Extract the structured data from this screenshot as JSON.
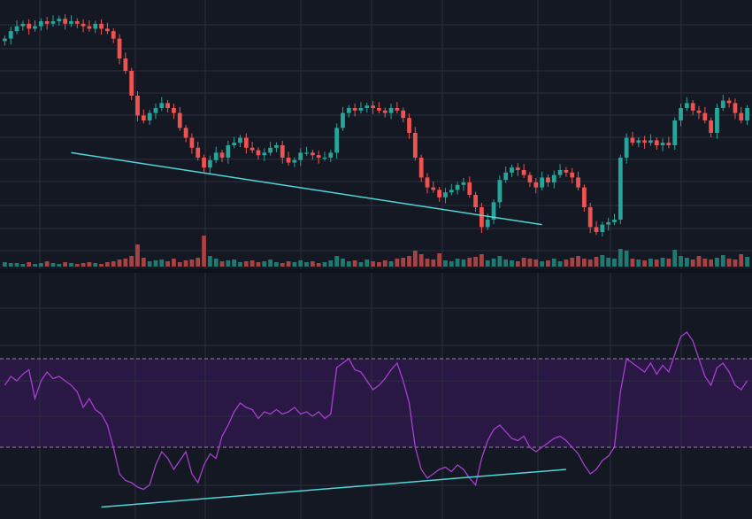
{
  "colors": {
    "background": "#141823",
    "grid": "#2a2f3d",
    "separator": "#2a2f3d",
    "bull": "#26a69a",
    "bear": "#ef5350",
    "bull_volume": "#1f7a72",
    "bear_volume": "#a84243",
    "rsi_line": "#a73fd0",
    "rsi_band": "#2a1844",
    "rsi_band_border": "#8d8d9a",
    "trendline": "#4fd6d6"
  },
  "chart_data": [
    {
      "type": "candlestick",
      "name": "price",
      "x_index_range": [
        0,
        123
      ],
      "ylim": [
        0,
        100
      ],
      "grid": true,
      "close": [
        88,
        91,
        93,
        94,
        92,
        93,
        95,
        94,
        95,
        96,
        94,
        95,
        94,
        93,
        92,
        94,
        92,
        91,
        88,
        80,
        75,
        65,
        57,
        55,
        58,
        60,
        62,
        60,
        58,
        52,
        48,
        44,
        40,
        36,
        39,
        42,
        40,
        45,
        46,
        48,
        44,
        43,
        41,
        42,
        44,
        45,
        40,
        38,
        39,
        42,
        42,
        41,
        40,
        40,
        42,
        52,
        58,
        60,
        59,
        60,
        61,
        60,
        59,
        58,
        60,
        59,
        56,
        50,
        40,
        32,
        28,
        27,
        24,
        26,
        27,
        29,
        30,
        25,
        20,
        12,
        15,
        22,
        31,
        34,
        36,
        35,
        33,
        30,
        28,
        32,
        30,
        33,
        35,
        34,
        32,
        28,
        20,
        12,
        10,
        13,
        14,
        15,
        40,
        48,
        46,
        47,
        46,
        47,
        45,
        46,
        45,
        55,
        60,
        62,
        59,
        58,
        55,
        50,
        60,
        63,
        62,
        58,
        55,
        60
      ],
      "trendline": {
        "from": [
          11,
          42
        ],
        "to": [
          89,
          13
        ]
      }
    },
    {
      "type": "bar",
      "name": "volume",
      "values": [
        5,
        4,
        4,
        3,
        5,
        3,
        4,
        6,
        4,
        3,
        5,
        4,
        3,
        4,
        5,
        4,
        3,
        5,
        6,
        8,
        9,
        12,
        25,
        10,
        6,
        7,
        8,
        6,
        9,
        5,
        7,
        8,
        10,
        35,
        12,
        9,
        6,
        7,
        8,
        5,
        6,
        7,
        5,
        6,
        8,
        5,
        4,
        6,
        5,
        7,
        5,
        6,
        4,
        5,
        7,
        12,
        9,
        6,
        7,
        5,
        8,
        6,
        5,
        7,
        6,
        9,
        10,
        12,
        18,
        14,
        9,
        8,
        15,
        7,
        6,
        9,
        8,
        10,
        11,
        14,
        7,
        9,
        12,
        8,
        7,
        6,
        10,
        9,
        8,
        6,
        7,
        9,
        6,
        8,
        10,
        12,
        9,
        8,
        11,
        13,
        10,
        9,
        20,
        18,
        9,
        8,
        7,
        9,
        8,
        10,
        9,
        19,
        12,
        10,
        8,
        12,
        9,
        8,
        10,
        13,
        9,
        8,
        14,
        11
      ],
      "direction": [
        1,
        1,
        1,
        1,
        -1,
        1,
        1,
        -1,
        1,
        1,
        -1,
        1,
        -1,
        -1,
        -1,
        1,
        -1,
        -1,
        -1,
        -1,
        -1,
        -1,
        -1,
        -1,
        1,
        1,
        1,
        -1,
        -1,
        -1,
        -1,
        -1,
        -1,
        -1,
        1,
        1,
        -1,
        1,
        1,
        1,
        -1,
        -1,
        -1,
        1,
        1,
        1,
        -1,
        -1,
        1,
        1,
        1,
        -1,
        -1,
        1,
        1,
        1,
        1,
        1,
        -1,
        1,
        1,
        -1,
        -1,
        -1,
        1,
        -1,
        -1,
        -1,
        -1,
        -1,
        -1,
        -1,
        -1,
        1,
        1,
        1,
        1,
        -1,
        -1,
        -1,
        1,
        1,
        1,
        1,
        1,
        -1,
        -1,
        -1,
        -1,
        1,
        -1,
        1,
        1,
        -1,
        -1,
        -1,
        -1,
        -1,
        -1,
        1,
        1,
        1,
        1,
        1,
        -1,
        1,
        -1,
        1,
        -1,
        1,
        -1,
        1,
        1,
        1,
        -1,
        -1,
        -1,
        -1,
        1,
        1,
        -1,
        -1,
        -1,
        1
      ]
    },
    {
      "type": "line",
      "name": "rsi",
      "ylim": [
        0,
        100
      ],
      "bands": [
        30,
        70
      ],
      "values": [
        58,
        62,
        60,
        63,
        65,
        52,
        60,
        64,
        61,
        62,
        60,
        58,
        55,
        48,
        52,
        47,
        45,
        40,
        30,
        18,
        15,
        14,
        12,
        11,
        13,
        22,
        28,
        25,
        20,
        24,
        28,
        18,
        14,
        22,
        27,
        25,
        35,
        40,
        46,
        50,
        48,
        47,
        43,
        46,
        45,
        47,
        45,
        46,
        48,
        45,
        46,
        44,
        46,
        43,
        45,
        66,
        68,
        70,
        65,
        64,
        60,
        56,
        58,
        61,
        65,
        68,
        60,
        50,
        30,
        20,
        16,
        18,
        20,
        21,
        19,
        22,
        20,
        16,
        13,
        25,
        33,
        38,
        40,
        37,
        34,
        33,
        35,
        30,
        28,
        30,
        32,
        34,
        35,
        33,
        30,
        27,
        22,
        18,
        20,
        24,
        26,
        30,
        55,
        70,
        68,
        66,
        64,
        68,
        63,
        67,
        64,
        72,
        80,
        82,
        78,
        70,
        62,
        58,
        66,
        68,
        64,
        58,
        56,
        60
      ],
      "trendline": {
        "from": [
          16,
          3
        ],
        "to": [
          93,
          20
        ]
      }
    }
  ]
}
